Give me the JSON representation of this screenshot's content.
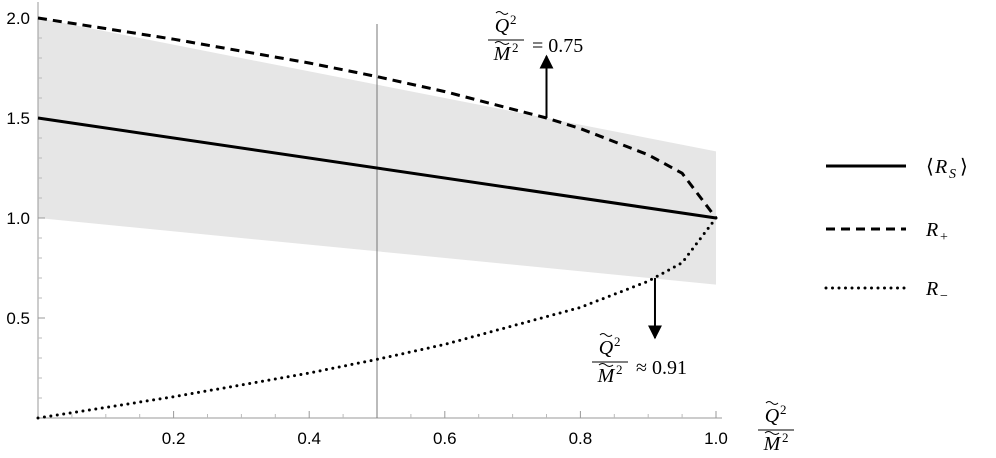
{
  "chart_data": {
    "type": "line",
    "xlim": [
      0,
      1
    ],
    "ylim": [
      0,
      2
    ],
    "grid": false,
    "legend_position": "right",
    "x_ticks": [
      "0.2",
      "0.4",
      "0.6",
      "0.8",
      "1.0"
    ],
    "y_ticks": [
      "0.5",
      "1.0",
      "1.5",
      "2.0"
    ],
    "x_axis_label": {
      "num_base": "Q",
      "num_sup": "2",
      "den_base": "M",
      "den_sup": "2"
    },
    "vertical_marker_x": 0.5,
    "shaded_band": {
      "x": [
        0,
        1
      ],
      "lower": [
        1.0,
        0.667
      ],
      "upper": [
        2.0,
        1.333
      ],
      "color": "#e6e6e6"
    },
    "series": [
      {
        "name": "⟨R_S⟩",
        "style": "solid",
        "x": [
          0,
          1
        ],
        "y": [
          1.5,
          1.0
        ]
      },
      {
        "name": "R_+",
        "style": "dashed",
        "x": [
          0,
          0.2,
          0.4,
          0.5,
          0.6,
          0.75,
          0.8,
          0.9,
          0.95,
          1.0
        ],
        "y": [
          2.0,
          1.894,
          1.775,
          1.707,
          1.632,
          1.5,
          1.447,
          1.316,
          1.224,
          1.0
        ]
      },
      {
        "name": "R_−",
        "style": "dotted",
        "x": [
          0,
          0.2,
          0.4,
          0.5,
          0.6,
          0.8,
          0.9,
          0.95,
          1.0
        ],
        "y": [
          0.0,
          0.106,
          0.225,
          0.293,
          0.368,
          0.553,
          0.684,
          0.776,
          1.0
        ]
      }
    ],
    "legend": {
      "items": [
        {
          "base": "R",
          "sub": "S",
          "brackets": true,
          "style": "solid"
        },
        {
          "base": "R",
          "sub": "+",
          "brackets": false,
          "style": "dashed"
        },
        {
          "base": "R",
          "sub": "−",
          "brackets": false,
          "style": "dotted"
        }
      ]
    },
    "annotations": [
      {
        "name": "annotation-075",
        "num_base": "Q",
        "num_sup": "2",
        "den_base": "M",
        "den_sup": "2",
        "relation": "= 0.75",
        "arrow_x": 0.75,
        "arrow_from_y": 1.5,
        "arrow_direction": "up"
      },
      {
        "name": "annotation-091",
        "num_base": "Q",
        "num_sup": "2",
        "den_base": "M",
        "den_sup": "2",
        "relation": "≈ 0.91",
        "arrow_x": 0.91,
        "arrow_from_y": 0.7,
        "arrow_direction": "down"
      }
    ]
  }
}
